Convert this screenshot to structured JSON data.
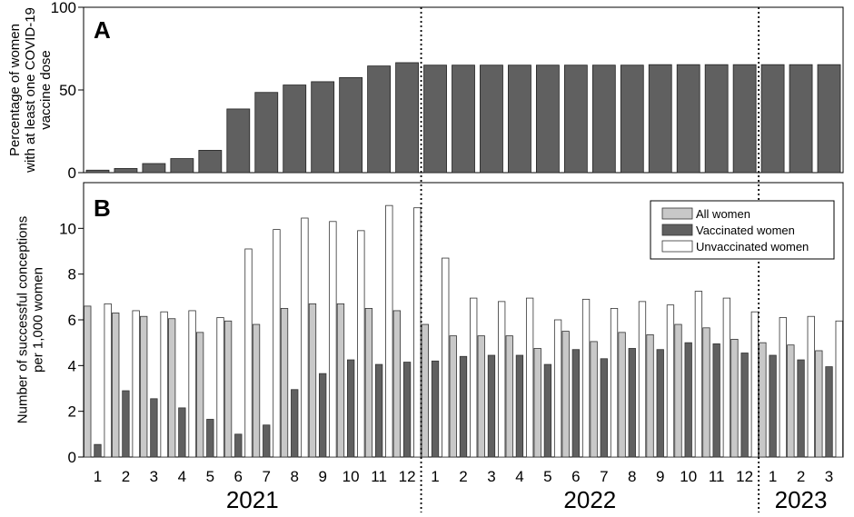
{
  "chart_data": [
    {
      "type": "bar",
      "panel_label": "A",
      "ylabel": [
        "Percentage of women",
        "with at least one COVID-19",
        "vaccine dose"
      ],
      "ylim": [
        0,
        100
      ],
      "yticks": [
        0,
        50,
        100
      ],
      "categories": [
        "1",
        "2",
        "3",
        "4",
        "5",
        "6",
        "7",
        "8",
        "9",
        "10",
        "11",
        "12",
        "1",
        "2",
        "3",
        "4",
        "5",
        "6",
        "7",
        "8",
        "9",
        "10",
        "11",
        "12",
        "1",
        "2",
        "3"
      ],
      "series": [
        {
          "values": [
            1.5,
            2.5,
            5.5,
            8.5,
            13.5,
            38.5,
            48.5,
            53,
            55,
            57.5,
            64.5,
            66.5,
            65,
            65,
            65,
            65,
            65,
            65,
            65,
            65,
            65.3,
            65.3,
            65.3,
            65.3,
            65.3,
            65.3,
            65.3
          ],
          "color": "#606060"
        }
      ],
      "year_dividers_after_index": [
        11,
        23
      ],
      "years": [
        {
          "label": "2021",
          "from": 0,
          "to": 11
        },
        {
          "label": "2022",
          "from": 12,
          "to": 23
        },
        {
          "label": "2023",
          "from": 24,
          "to": 26
        }
      ]
    },
    {
      "type": "bar",
      "panel_label": "B",
      "ylabel": [
        "Number of successful conceptions",
        "per 1,000 women"
      ],
      "ylim": [
        0,
        12
      ],
      "yticks": [
        0,
        2,
        4,
        6,
        8,
        10
      ],
      "categories": [
        "1",
        "2",
        "3",
        "4",
        "5",
        "6",
        "7",
        "8",
        "9",
        "10",
        "11",
        "12",
        "1",
        "2",
        "3",
        "4",
        "5",
        "6",
        "7",
        "8",
        "9",
        "10",
        "11",
        "12",
        "1",
        "2",
        "3"
      ],
      "series": [
        {
          "name": "All women",
          "color": "#c8c8c8",
          "values": [
            6.6,
            6.3,
            6.15,
            6.05,
            5.45,
            5.95,
            5.8,
            6.5,
            6.7,
            6.7,
            6.5,
            6.4,
            5.8,
            5.3,
            5.3,
            5.3,
            4.75,
            5.5,
            5.05,
            5.45,
            5.35,
            5.8,
            5.65,
            5.15,
            5.0,
            4.9,
            4.65
          ]
        },
        {
          "name": "Vaccinated women",
          "color": "#606060",
          "values": [
            0.55,
            2.9,
            2.55,
            2.15,
            1.65,
            1.0,
            1.4,
            2.95,
            3.65,
            4.25,
            4.05,
            4.15,
            4.2,
            4.4,
            4.45,
            4.45,
            4.05,
            4.7,
            4.3,
            4.75,
            4.7,
            5.0,
            4.95,
            4.55,
            4.45,
            4.25,
            3.95
          ]
        },
        {
          "name": "Unvaccinated women",
          "color": "#ffffff",
          "values": [
            6.7,
            6.4,
            6.35,
            6.4,
            6.1,
            9.1,
            9.95,
            10.45,
            10.3,
            9.9,
            11.0,
            10.9,
            8.7,
            6.95,
            6.8,
            6.95,
            6.0,
            6.9,
            6.5,
            6.8,
            6.65,
            7.25,
            6.95,
            6.35,
            6.1,
            6.15,
            5.95
          ]
        }
      ],
      "legend": {
        "position": "top-right"
      },
      "x_tick_labels": [
        "1",
        "2",
        "3",
        "4",
        "5",
        "6",
        "7",
        "8",
        "9",
        "10",
        "11",
        "12",
        "1",
        "2",
        "3",
        "4",
        "5",
        "6",
        "7",
        "8",
        "9",
        "10",
        "11",
        "12",
        "1",
        "2",
        "3"
      ],
      "year_dividers_after_index": [
        11,
        23
      ],
      "years": [
        {
          "label": "2021",
          "from": 0,
          "to": 11
        },
        {
          "label": "2022",
          "from": 12,
          "to": 23
        },
        {
          "label": "2023",
          "from": 24,
          "to": 26
        }
      ]
    }
  ]
}
